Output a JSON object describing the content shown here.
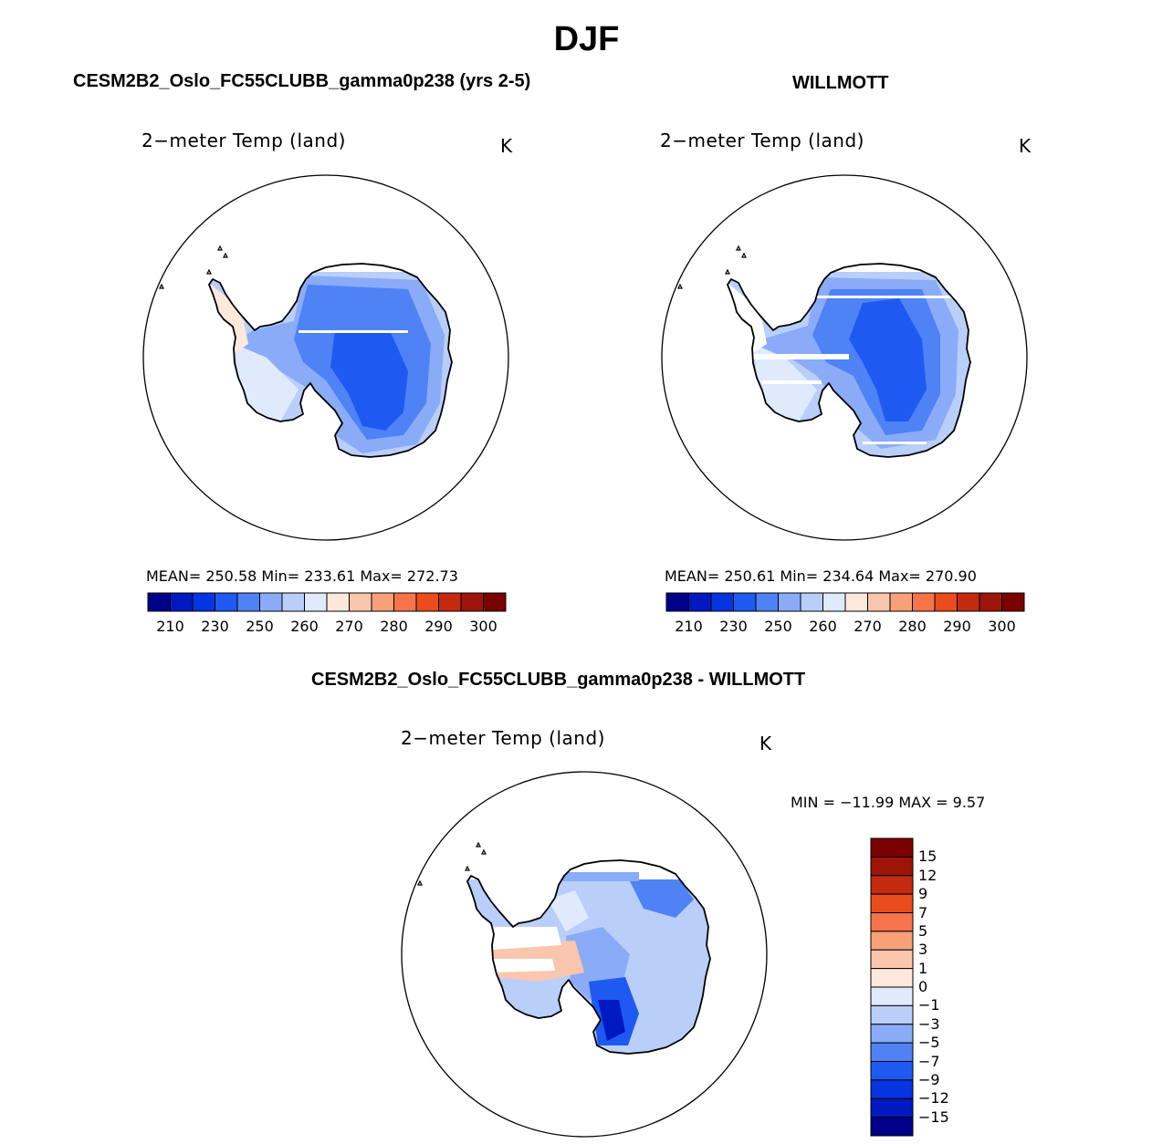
{
  "figure": {
    "title": "DJF",
    "colors": {
      "land_outline": "#000000",
      "abs_scale": [
        "#00008b",
        "#0019c1",
        "#0535e0",
        "#1e5af2",
        "#4f82f5",
        "#8aabf7",
        "#b9cff9",
        "#dfeafc",
        "#fde9dc",
        "#fac6ae",
        "#f8a078",
        "#f5744a",
        "#eb4c1d",
        "#c32a10",
        "#9e1408",
        "#7b0000"
      ],
      "diff_scale": [
        "#00008b",
        "#0019c1",
        "#0535e0",
        "#1e5af2",
        "#4f82f5",
        "#8aabf7",
        "#b9cff9",
        "#dfeafc",
        "#fde9dc",
        "#fac6ae",
        "#f8a078",
        "#f5744a",
        "#eb4c1d",
        "#c32a10",
        "#9e1408",
        "#7b0000"
      ]
    }
  },
  "panels": {
    "model": {
      "case_title": "CESM2B2_Oslo_FC55CLUBB_gamma0p238 (yrs 2-5)",
      "variable": "2−meter Temp (land)",
      "units": "K",
      "stats": "MEAN=  250.58    Min=  233.61    Max=  272.73"
    },
    "obs": {
      "case_title": "WILLMOTT",
      "variable": "2−meter Temp (land)",
      "units": "K",
      "stats": "MEAN=  250.61    Min=  234.64    Max=  270.90"
    },
    "diff": {
      "case_title": "CESM2B2_Oslo_FC55CLUBB_gamma0p238 - WILLMOTT",
      "variable": "2−meter Temp (land)",
      "units": "K",
      "stats": "MIN = −11.99  MAX =     9.57"
    }
  },
  "chart_data": [
    {
      "type": "heatmap",
      "title": "2−meter Temp (land)",
      "case": "CESM2B2_Oslo_FC55CLUBB_gamma0p238 (yrs 2-5)",
      "season": "DJF",
      "units": "K",
      "projection": "south polar stereographic",
      "mean": 250.58,
      "min": 233.61,
      "max": 272.73,
      "colorbar_ticks": [
        "210",
        "230",
        "250",
        "260",
        "270",
        "280",
        "290",
        "300"
      ]
    },
    {
      "type": "heatmap",
      "title": "2−meter Temp (land)",
      "case": "WILLMOTT",
      "season": "DJF",
      "units": "K",
      "projection": "south polar stereographic",
      "mean": 250.61,
      "min": 234.64,
      "max": 270.9,
      "colorbar_ticks": [
        "210",
        "230",
        "250",
        "260",
        "270",
        "280",
        "290",
        "300"
      ]
    },
    {
      "type": "heatmap",
      "title": "2−meter Temp (land)",
      "case": "CESM2B2_Oslo_FC55CLUBB_gamma0p238 - WILLMOTT",
      "season": "DJF",
      "units": "K",
      "projection": "south polar stereographic",
      "min": -11.99,
      "max": 9.57,
      "colorbar_ticks": [
        "15",
        "12",
        "9",
        "7",
        "5",
        "3",
        "1",
        "0",
        "−1",
        "−3",
        "−5",
        "−7",
        "−9",
        "−12",
        "−15"
      ]
    }
  ]
}
